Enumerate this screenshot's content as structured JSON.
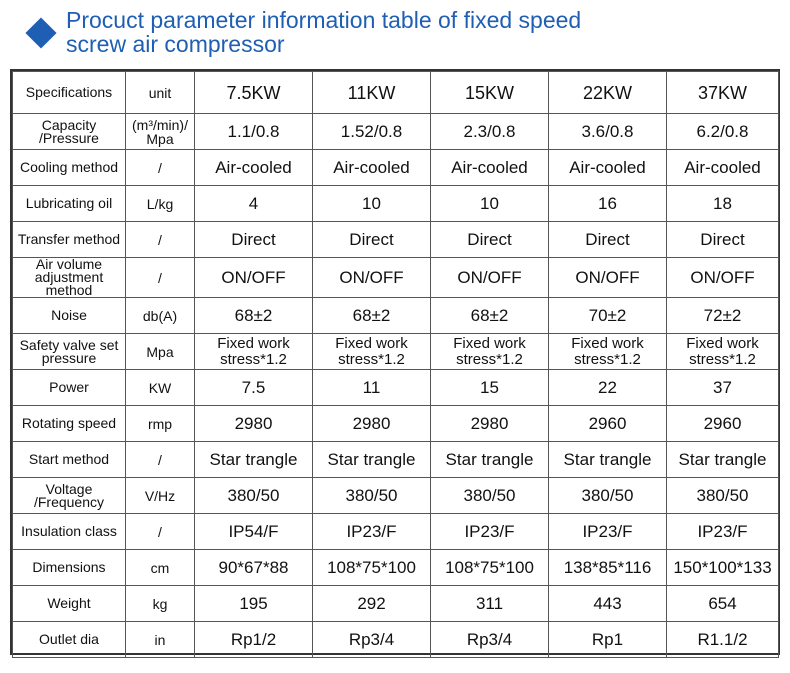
{
  "header": {
    "icon": "diamond-icon",
    "title_line1": "Procuct parameter information table of fixed speed",
    "title_line2": "screw air compressor",
    "accent_color": "#1f5fb3"
  },
  "table": {
    "columns": [
      "Specifications",
      "unit",
      "7.5KW",
      "11KW",
      "15KW",
      "22KW",
      "37KW"
    ],
    "rows": [
      {
        "spec": "Capacity /Pressure",
        "unit": "(m³/min)/ Mpa",
        "values": [
          "1.1/0.8",
          "1.52/0.8",
          "2.3/0.8",
          "3.6/0.8",
          "6.2/0.8"
        ]
      },
      {
        "spec": "Cooling method",
        "unit": "/",
        "values": [
          "Air-cooled",
          "Air-cooled",
          "Air-cooled",
          "Air-cooled",
          "Air-cooled"
        ]
      },
      {
        "spec": "Lubricating oil",
        "unit": "L/kg",
        "values": [
          "4",
          "10",
          "10",
          "16",
          "18"
        ]
      },
      {
        "spec": "Transfer method",
        "unit": "/",
        "values": [
          "Direct",
          "Direct",
          "Direct",
          "Direct",
          "Direct"
        ]
      },
      {
        "spec": "Air volume adjustment method",
        "unit": "/",
        "values": [
          "ON/OFF",
          "ON/OFF",
          "ON/OFF",
          "ON/OFF",
          "ON/OFF"
        ]
      },
      {
        "spec": "Noise",
        "unit": "db(A)",
        "values": [
          "68±2",
          "68±2",
          "68±2",
          "70±2",
          "72±2"
        ]
      },
      {
        "spec": "Safety valve set pressure",
        "unit": "Mpa",
        "values": [
          "Fixed work stress*1.2",
          "Fixed work stress*1.2",
          "Fixed work stress*1.2",
          "Fixed work stress*1.2",
          "Fixed work stress*1.2"
        ]
      },
      {
        "spec": "Power",
        "unit": "KW",
        "values": [
          "7.5",
          "11",
          "15",
          "22",
          "37"
        ]
      },
      {
        "spec": "Rotating speed",
        "unit": "rmp",
        "values": [
          "2980",
          "2980",
          "2980",
          "2960",
          "2960"
        ]
      },
      {
        "spec": "Start method",
        "unit": "/",
        "values": [
          "Star trangle",
          "Star trangle",
          "Star trangle",
          "Star trangle",
          "Star trangle"
        ]
      },
      {
        "spec": "Voltage /Frequency",
        "unit": "V/Hz",
        "values": [
          "380/50",
          "380/50",
          "380/50",
          "380/50",
          "380/50"
        ]
      },
      {
        "spec": "Insulation class",
        "unit": "/",
        "values": [
          "IP54/F",
          "IP23/F",
          "IP23/F",
          "IP23/F",
          "IP23/F"
        ]
      },
      {
        "spec": "Dimensions",
        "unit": "cm",
        "values": [
          "90*67*88",
          "108*75*100",
          "108*75*100",
          "138*85*116",
          "150*100*133"
        ]
      },
      {
        "spec": "Weight",
        "unit": "kg",
        "values": [
          "195",
          "292",
          "311",
          "443",
          "654"
        ]
      },
      {
        "spec": "Outlet dia",
        "unit": "in",
        "values": [
          "Rp1/2",
          "Rp3/4",
          "Rp3/4",
          "Rp1",
          "R1.1/2"
        ]
      }
    ]
  }
}
